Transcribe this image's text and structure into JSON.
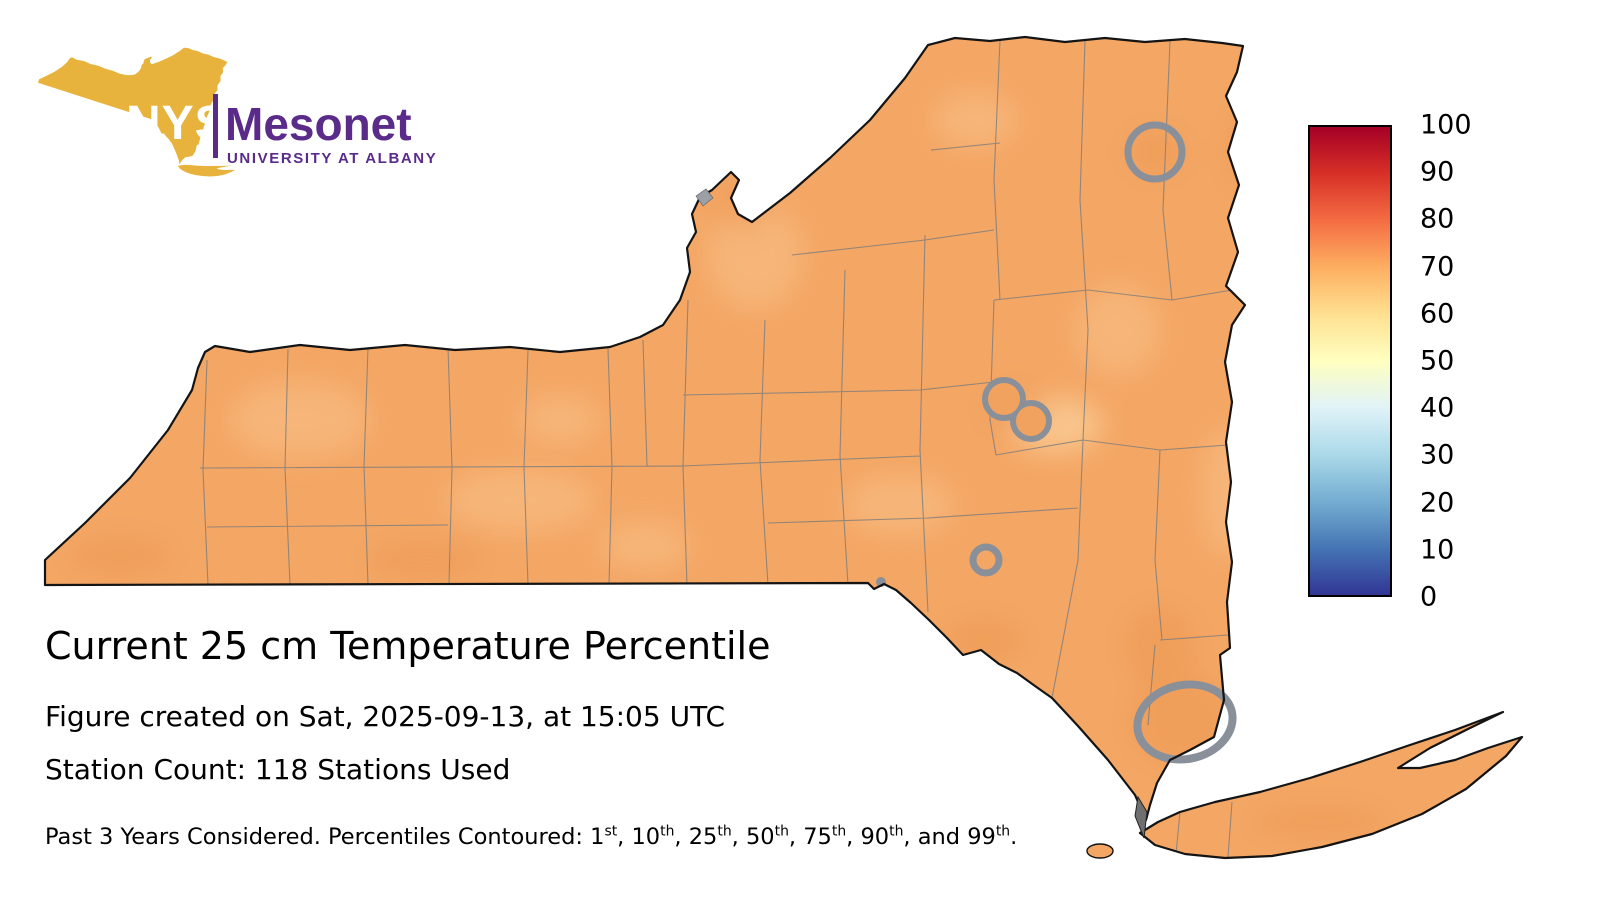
{
  "logo": {
    "nys": "NYS",
    "mesonet": "Mesonet",
    "university": "UNIVERSITY AT ALBANY",
    "state_fill": "#E8B33C",
    "purple": "#5B2B8A"
  },
  "title": "Current 25 cm Temperature Percentile",
  "subtitle_created": "Figure created on Sat, 2025-09-13, at 15:05 UTC",
  "station_count": "Station Count: 118 Stations Used",
  "footer": {
    "segments": [
      {
        "text": "Past 3 Years Considered. Percentiles Contoured: 1",
        "sup": "st"
      },
      {
        "text": ", 10",
        "sup": "th"
      },
      {
        "text": ", 25",
        "sup": "th"
      },
      {
        "text": ", 50",
        "sup": "th"
      },
      {
        "text": ", 75",
        "sup": "th"
      },
      {
        "text": ", 90",
        "sup": "th"
      },
      {
        "text": ", and 99",
        "sup": "th"
      },
      {
        "text": ".",
        "sup": ""
      }
    ]
  },
  "colorbar": {
    "min": 0,
    "max": 100,
    "ticks": [
      "100",
      "90",
      "80",
      "70",
      "60",
      "50",
      "40",
      "30",
      "20",
      "10",
      "0"
    ],
    "stops_bottom_to_top": [
      "#313695",
      "#4575b4",
      "#74add1",
      "#abd9e9",
      "#e0f3f8",
      "#ffffbf",
      "#fee090",
      "#fdae61",
      "#f46d43",
      "#d73027",
      "#a50026"
    ]
  },
  "map": {
    "region": "New York State",
    "base_fill": "#F4A765",
    "county_line_color": "#7C7C7C",
    "state_line_color": "#141414",
    "contour_color": "#8A9099",
    "dominant_percentile_range_shown": "65-80"
  }
}
